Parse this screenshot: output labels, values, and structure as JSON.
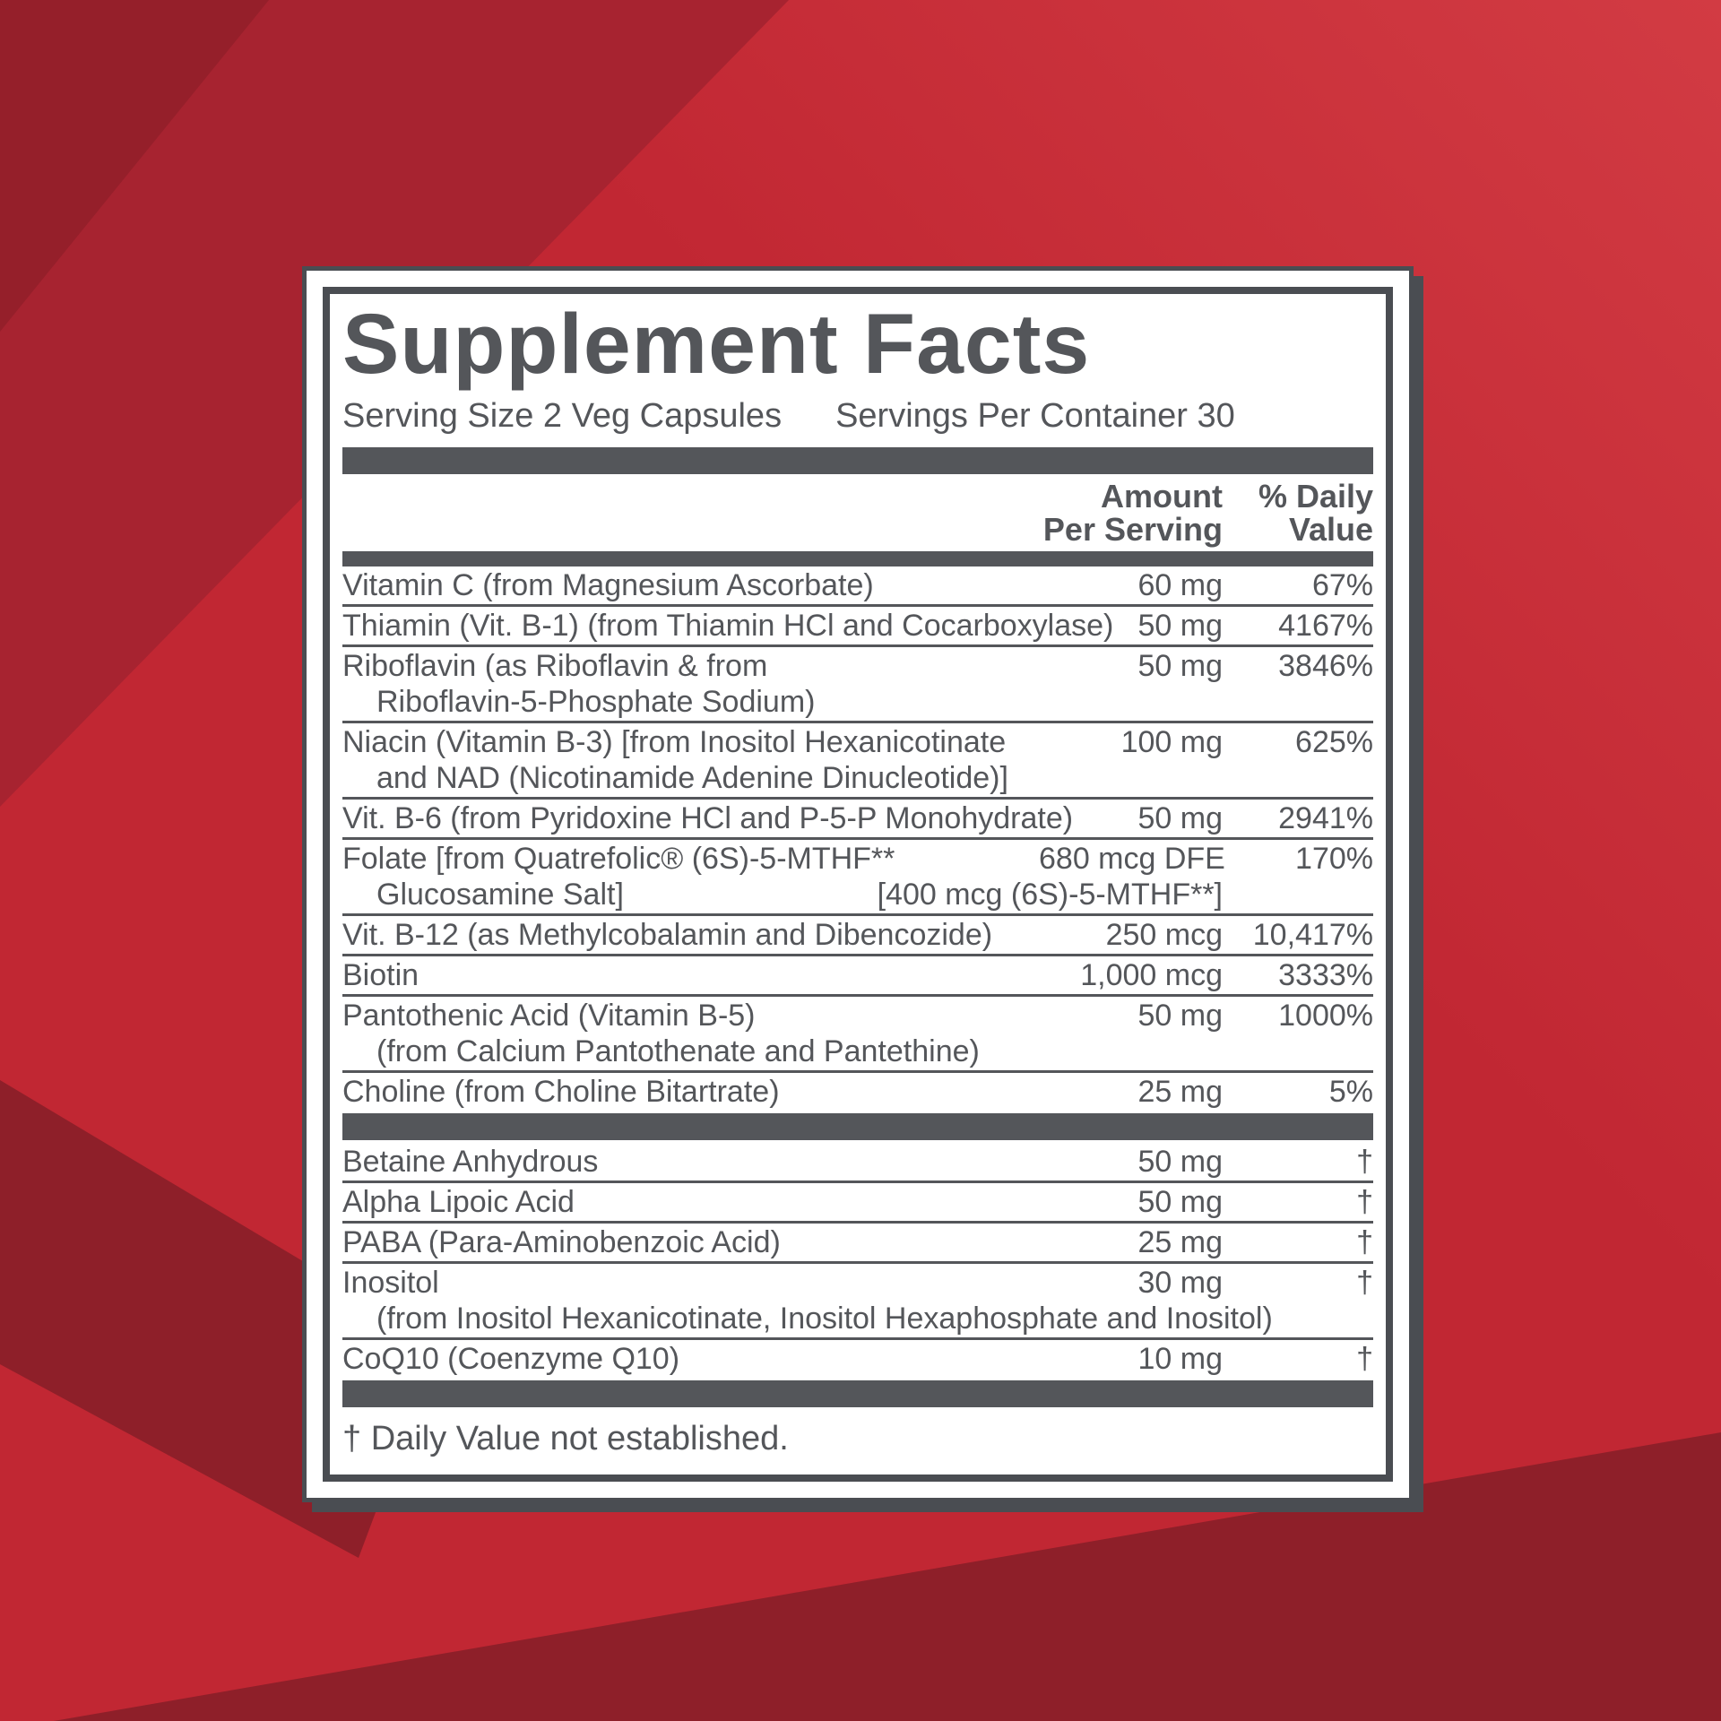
{
  "label": {
    "title": "Supplement Facts",
    "serving_size": "Serving Size 2 Veg Capsules",
    "servings_per_container": "Servings Per Container 30",
    "column_headers": {
      "amount": "Amount\nPer Serving",
      "daily_value": "% Daily\nValue"
    },
    "rows": [
      {
        "section": 1,
        "name": "Vitamin C (from Magnesium Ascorbate)",
        "amount": "60 mg",
        "dv": "67%"
      },
      {
        "section": 1,
        "name": "Thiamin (Vit. B-1) (from Thiamin HCl and Cocarboxylase)",
        "amount": "50 mg",
        "dv": "4167%"
      },
      {
        "section": 1,
        "name": "Riboflavin (as Riboflavin & from",
        "name2": "Riboflavin-5-Phosphate Sodium)",
        "amount": "50 mg",
        "dv": "3846%"
      },
      {
        "section": 1,
        "name": "Niacin (Vitamin B-3) [from Inositol Hexanicotinate",
        "name2": "and NAD (Nicotinamide Adenine Dinucleotide)]",
        "amount": "100 mg",
        "dv": "625%"
      },
      {
        "section": 1,
        "name": "Vit. B-6 (from Pyridoxine HCl and P-5-P Monohydrate)",
        "amount": "50 mg",
        "dv": "2941%"
      },
      {
        "section": 1,
        "name": "Folate [from Quatrefolic® (6S)-5-MTHF**",
        "name2": "Glucosamine Salt]",
        "amount": "680 mcg DFE",
        "amount2": "[400 mcg (6S)-5-MTHF**]",
        "dv": "170%"
      },
      {
        "section": 1,
        "name": "Vit. B-12 (as Methylcobalamin and Dibencozide)",
        "amount": "250 mcg",
        "dv": "10,417%"
      },
      {
        "section": 1,
        "name": "Biotin",
        "amount": "1,000 mcg",
        "dv": "3333%"
      },
      {
        "section": 1,
        "name": "Pantothenic Acid (Vitamin B-5)",
        "name2": "(from Calcium Pantothenate and Pantethine)",
        "amount": "50 mg",
        "dv": "1000%"
      },
      {
        "section": 1,
        "name": "Choline (from Choline Bitartrate)",
        "amount": "25 mg",
        "dv": "5%"
      },
      {
        "section": 2,
        "name": "Betaine Anhydrous",
        "amount": "50 mg",
        "dv": "†"
      },
      {
        "section": 2,
        "name": "Alpha Lipoic Acid",
        "amount": "50 mg",
        "dv": "†"
      },
      {
        "section": 2,
        "name": "PABA (Para-Aminobenzoic Acid)",
        "amount": "25 mg",
        "dv": "†"
      },
      {
        "section": 2,
        "name": "Inositol",
        "name2": "(from Inositol Hexanicotinate, Inositol Hexaphosphate and Inositol)",
        "amount": "30 mg",
        "dv": "†"
      },
      {
        "section": 2,
        "name": "CoQ10 (Coenzyme Q10)",
        "amount": "10 mg",
        "dv": "†"
      }
    ],
    "footnote": "† Daily Value not established."
  },
  "colors": {
    "background_red": "#C12733",
    "background_red_light": "#D23B43",
    "background_red_dark": "#A72330",
    "background_maroon": "#8E1F29",
    "background_maroon_deep": "#951F2A",
    "panel_white": "#FFFFFF",
    "label_gray": "#54565A",
    "frame_gray": "#4A4D52"
  }
}
